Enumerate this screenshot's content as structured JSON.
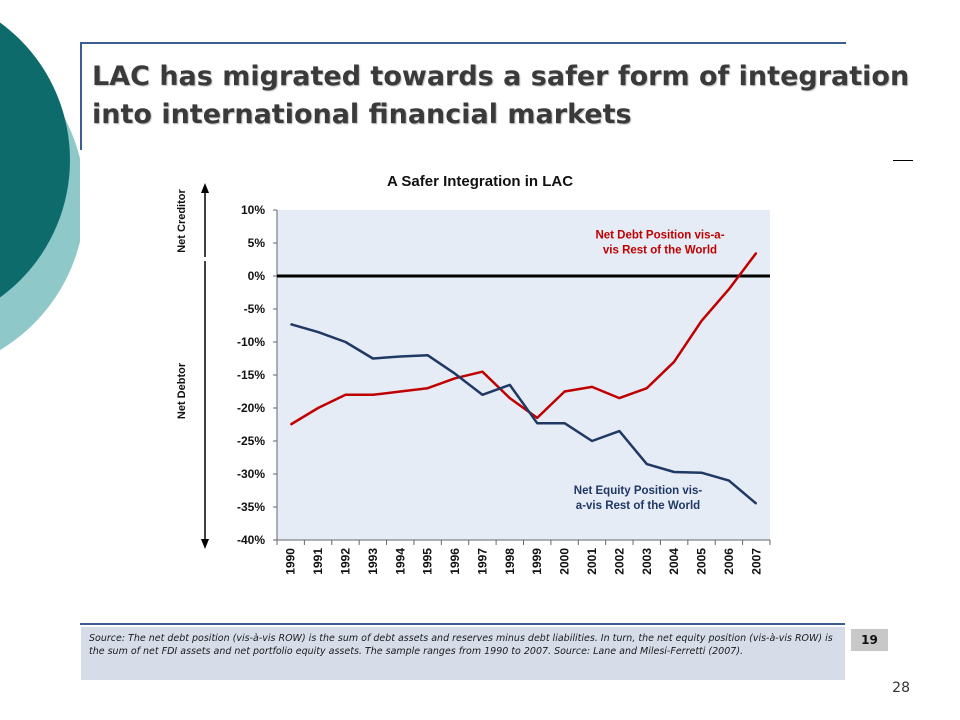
{
  "slide": {
    "title": "LAC has migrated towards a safer form of integration into international financial markets",
    "source_note": "Source: The net debt position (vis-à-vis ROW) is the sum of debt assets and reserves minus debt liabilities. In turn, the net equity position (vis-à-vis ROW) is the sum of net FDI assets and net portfolio equity assets. The sample ranges from 1990 to 2007. Source: Lane and Milesi-Ferretti (2007).",
    "inner_page_number": "19",
    "slide_number": "28"
  },
  "colors": {
    "teal_dark": "#0e6b6b",
    "teal_light": "#8fc8c8",
    "accent_blue": "#3b5e91",
    "debt_series": "#c00000",
    "equity_series": "#1f3864",
    "plot_bg": "#e6ecf5"
  },
  "chart_data": {
    "type": "line",
    "title": "A Safer Integration in LAC",
    "categories": [
      "1990",
      "1991",
      "1992",
      "1993",
      "1994",
      "1995",
      "1996",
      "1997",
      "1998",
      "1999",
      "2000",
      "2001",
      "2002",
      "2003",
      "2004",
      "2005",
      "2006",
      "2007"
    ],
    "ylim": [
      -40,
      10
    ],
    "yticks": [
      10,
      5,
      0,
      -5,
      -10,
      -15,
      -20,
      -25,
      -30,
      -35,
      -40
    ],
    "ytick_labels": [
      "10%",
      "5%",
      "0%",
      "-5%",
      "-10%",
      "-15%",
      "-20%",
      "-25%",
      "-30%",
      "-35%",
      "-40%"
    ],
    "y_regions": {
      "top": "Net Creditor",
      "bottom": "Net Debtor"
    },
    "series": [
      {
        "name": "Net Debt Position vis-a-vis Rest of the World",
        "label_lines": [
          "Net Debt Position vis-a-",
          "vis Rest of the World"
        ],
        "color": "#c00000",
        "values": [
          -22.5,
          -20.0,
          -18.0,
          -18.0,
          -17.5,
          -17.0,
          -15.5,
          -14.5,
          -18.5,
          -21.5,
          -17.5,
          -16.8,
          -18.5,
          -17.0,
          -13.0,
          -6.8,
          -2.0,
          3.5
        ]
      },
      {
        "name": "Net Equity Position vis-a-vis Rest of the World",
        "label_lines": [
          "Net Equity Position vis-",
          "a-vis Rest of the World"
        ],
        "color": "#1f3864",
        "values": [
          -7.3,
          -8.5,
          -10.0,
          -12.5,
          -12.2,
          -12.0,
          -14.8,
          -18.0,
          -16.5,
          -22.3,
          -22.3,
          -25.0,
          -23.5,
          -28.5,
          -29.7,
          -29.8,
          -31.0,
          -34.5
        ]
      }
    ]
  }
}
